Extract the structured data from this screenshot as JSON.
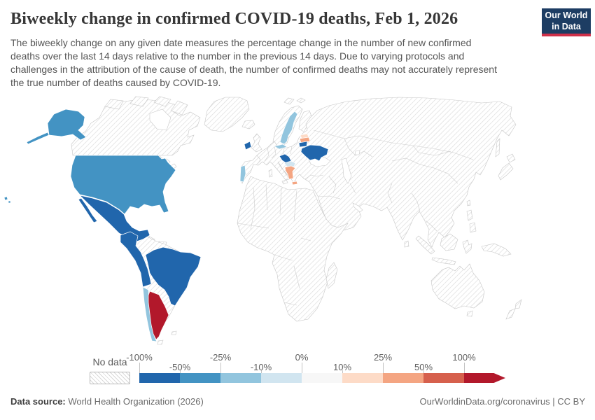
{
  "header": {
    "title": "Biweekly change in confirmed COVID-19 deaths, Feb 1, 2026",
    "subtitle": "The biweekly change on any given date measures the percentage change in the number of new confirmed deaths over the last 14 days relative to the number in the previous 14 days. Due to varying protocols and challenges in the attribution of the cause of death, the number of confirmed deaths may not accurately represent the true number of deaths caused by COVID-19.",
    "logo": {
      "line1": "Our World",
      "line2": "in Data"
    }
  },
  "legend": {
    "no_data_label": "No data",
    "colors": [
      "#2166ac",
      "#4393c3",
      "#92c5de",
      "#d1e5f0",
      "#f7f7f7",
      "#fddbc7",
      "#f4a582",
      "#d6604d",
      "#b2182b"
    ],
    "ticks": [
      {
        "label": "-100%",
        "row": "top"
      },
      {
        "label": "-50%",
        "row": "bottom"
      },
      {
        "label": "-25%",
        "row": "top"
      },
      {
        "label": "-10%",
        "row": "bottom"
      },
      {
        "label": "0%",
        "row": "top"
      },
      {
        "label": "10%",
        "row": "bottom"
      },
      {
        "label": "25%",
        "row": "top"
      },
      {
        "label": "50%",
        "row": "bottom"
      },
      {
        "label": "100%",
        "row": "top"
      }
    ]
  },
  "footer": {
    "source_label": "Data source:",
    "source_value": " World Health Organization (2026)",
    "link_text": "OurWorldinData.org/coronavirus",
    "divider": " | ",
    "license": "CC BY"
  },
  "chart_data": {
    "type": "choropleth",
    "title": "Biweekly change in confirmed COVID-19 deaths",
    "date": "Feb 1, 2026",
    "unit": "%",
    "legend_position": "bottom",
    "bins": [
      {
        "range": "-100% to -50%",
        "color": "#2166ac"
      },
      {
        "range": "-50% to -25%",
        "color": "#4393c3"
      },
      {
        "range": "-25% to -10%",
        "color": "#92c5de"
      },
      {
        "range": "-10% to 0%",
        "color": "#d1e5f0"
      },
      {
        "range": "0% to 10%",
        "color": "#f7f7f7"
      },
      {
        "range": "10% to 25%",
        "color": "#fddbc7"
      },
      {
        "range": "25% to 50%",
        "color": "#f4a582"
      },
      {
        "range": "50% to 100%",
        "color": "#d6604d"
      },
      {
        "range": "more than 100%",
        "color": "#b2182b"
      },
      {
        "range": "No data",
        "color": "hatched"
      }
    ],
    "countries": [
      {
        "name": "United States",
        "bin": "-50% to -25%",
        "color": "#4393c3"
      },
      {
        "name": "Mexico",
        "bin": "-100% to -50%",
        "color": "#2166ac"
      },
      {
        "name": "Guatemala",
        "bin": "-100% to -50%",
        "color": "#2166ac"
      },
      {
        "name": "Costa Rica / Panama",
        "bin": "-100% to -50%",
        "color": "#2166ac"
      },
      {
        "name": "Colombia / Ecuador / Peru",
        "bin": "-100% to -50%",
        "color": "#2166ac"
      },
      {
        "name": "Brazil",
        "bin": "-100% to -50%",
        "color": "#2166ac"
      },
      {
        "name": "Chile",
        "bin": "-25% to -10%",
        "color": "#92c5de"
      },
      {
        "name": "Argentina",
        "bin": "more than 100%",
        "color": "#b2182b"
      },
      {
        "name": "Ireland",
        "bin": "-100% to -50%",
        "color": "#2166ac"
      },
      {
        "name": "Portugal",
        "bin": "-25% to -10%",
        "color": "#92c5de"
      },
      {
        "name": "Sweden",
        "bin": "-25% to -10%",
        "color": "#92c5de"
      },
      {
        "name": "Estonia",
        "bin": "10% to 25%",
        "color": "#fddbc7"
      },
      {
        "name": "Latvia",
        "bin": "25% to 50%",
        "color": "#f4a582"
      },
      {
        "name": "Lithuania",
        "bin": "-100% to -50%",
        "color": "#2166ac"
      },
      {
        "name": "Ukraine",
        "bin": "-100% to -50%",
        "color": "#2166ac"
      },
      {
        "name": "Slovakia",
        "bin": "-25% to -10%",
        "color": "#92c5de"
      },
      {
        "name": "Croatia / Serbia",
        "bin": "-100% to -50%",
        "color": "#2166ac"
      },
      {
        "name": "Bulgaria / North Macedonia",
        "bin": "-10% to 0%",
        "color": "#d1e5f0"
      },
      {
        "name": "Greece",
        "bin": "25% to 50%",
        "color": "#f4a582"
      },
      {
        "name": "All other countries",
        "bin": "No data",
        "color": "hatched"
      }
    ]
  }
}
